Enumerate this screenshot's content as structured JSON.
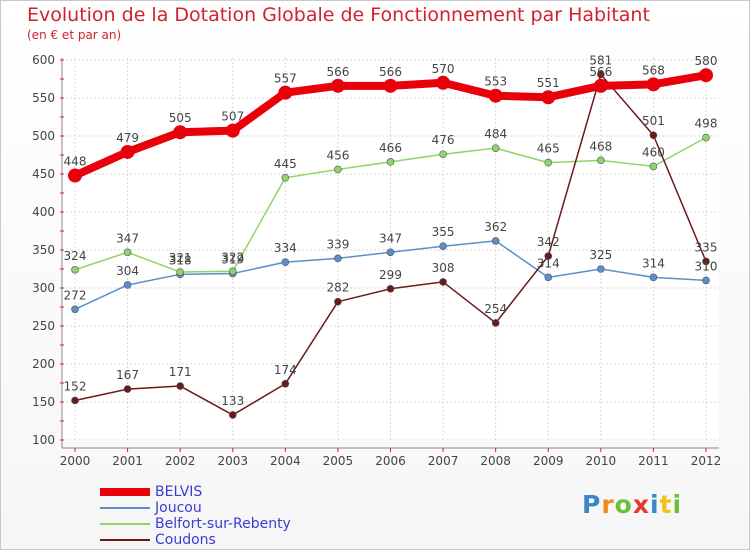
{
  "chart_data": {
    "type": "line",
    "title": "Evolution de la Dotation Globale de Fonctionnement par Habitant",
    "subtitle": "(en € et par an)",
    "xlabel": "",
    "ylabel": "",
    "categories": [
      "2000",
      "2001",
      "2002",
      "2003",
      "2004",
      "2005",
      "2006",
      "2007",
      "2008",
      "2009",
      "2010",
      "2011",
      "2012"
    ],
    "ylim": [
      100,
      600
    ],
    "yticks": [
      100,
      150,
      200,
      250,
      300,
      350,
      400,
      450,
      500,
      550,
      600
    ],
    "grid": true,
    "series": [
      {
        "name": "BELVIS",
        "color": "#e8000b",
        "values": [
          448,
          479,
          505,
          507,
          557,
          566,
          566,
          570,
          553,
          551,
          566,
          568,
          580
        ]
      },
      {
        "name": "Joucou",
        "color": "#5b8fc8",
        "values": [
          272,
          304,
          318,
          319,
          334,
          339,
          347,
          355,
          362,
          314,
          325,
          314,
          310
        ]
      },
      {
        "name": "Belfort-sur-Rebenty",
        "color": "#8fd46a",
        "values": [
          324,
          347,
          321,
          322,
          445,
          456,
          466,
          476,
          484,
          465,
          468,
          460,
          498
        ]
      },
      {
        "name": "Coudons",
        "color": "#6b1a1a",
        "values": [
          152,
          167,
          171,
          133,
          174,
          282,
          299,
          308,
          254,
          342,
          581,
          501,
          335
        ]
      }
    ]
  },
  "logo": {
    "letters": [
      "P",
      "r",
      "o",
      "x",
      "i",
      "t",
      "i"
    ],
    "colors": [
      "#3a86c8",
      "#f08a1c",
      "#6cbf3a",
      "#e23b2e",
      "#3a86c8",
      "#f0c21c",
      "#6cbf3a"
    ]
  }
}
